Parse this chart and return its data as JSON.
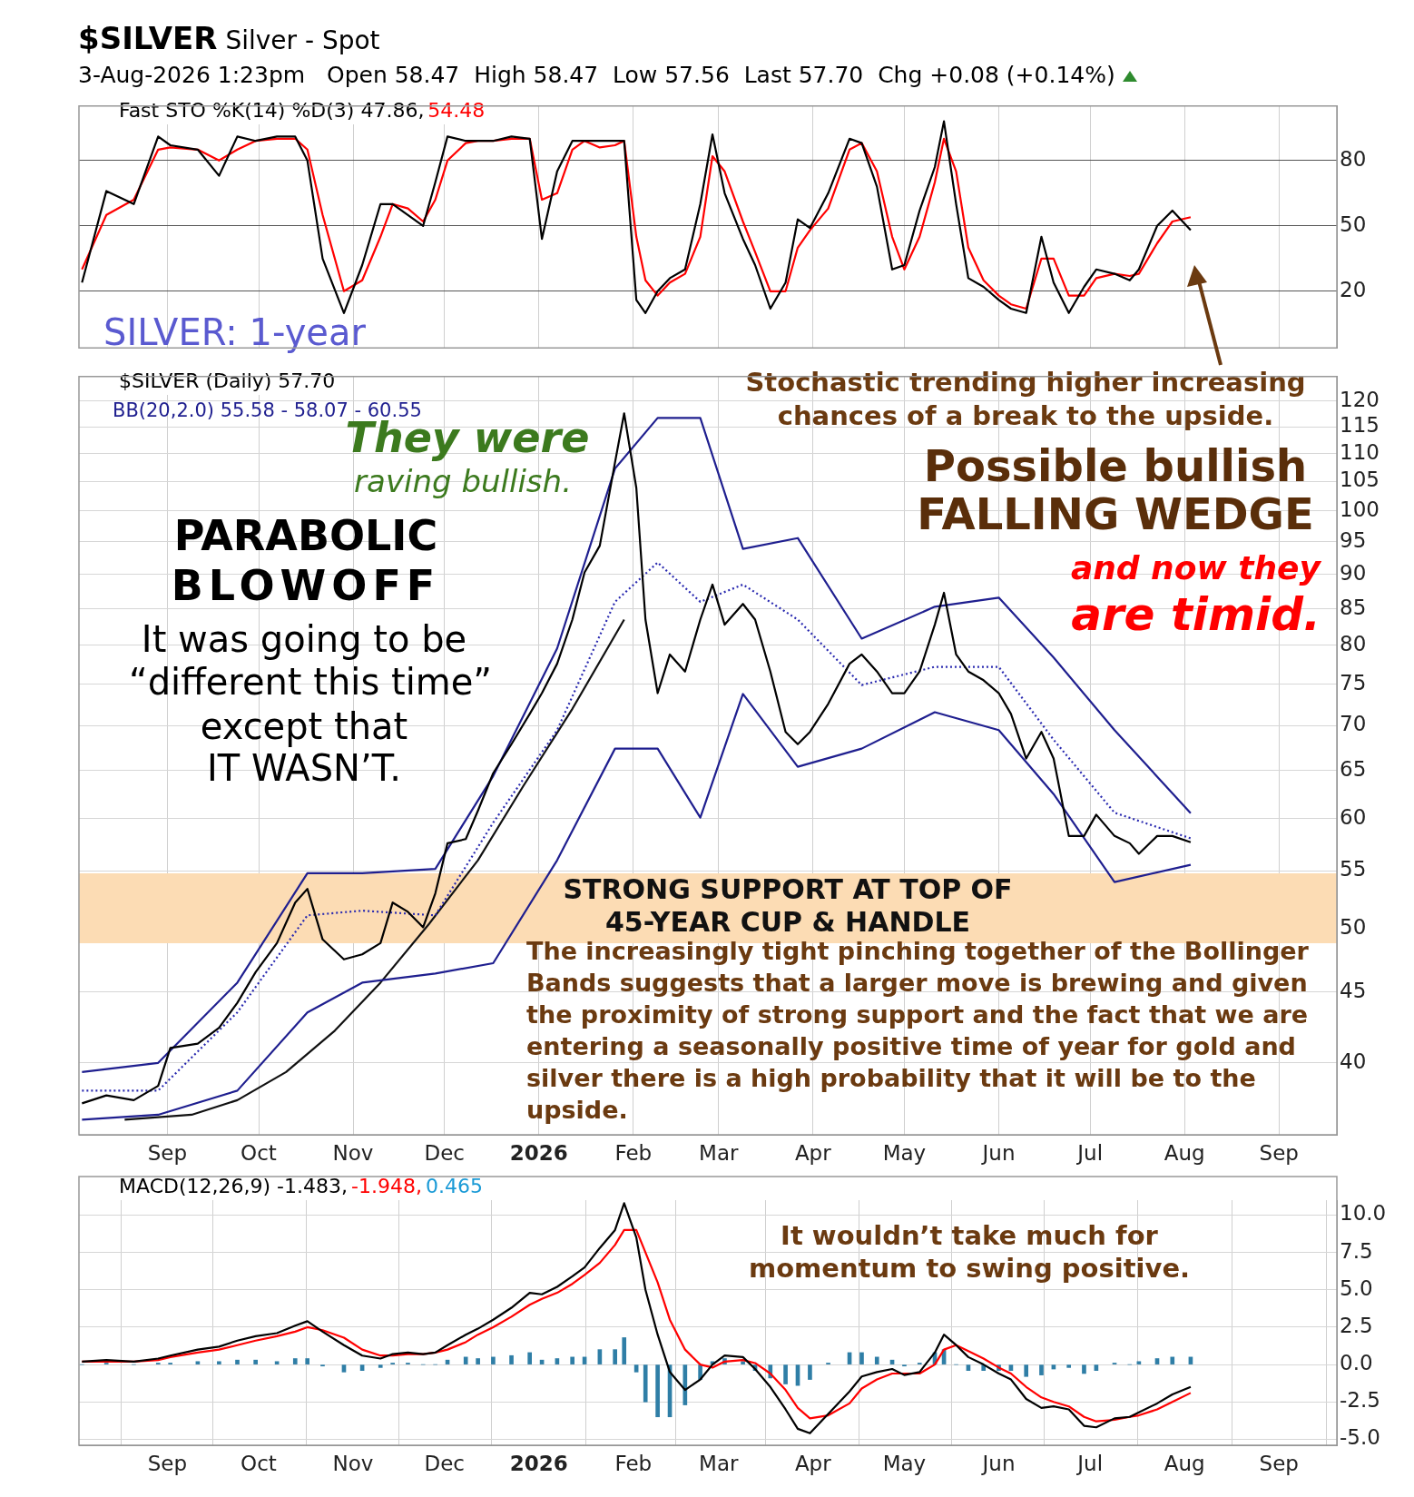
{
  "chart_data": [
    {
      "type": "line",
      "title": "$SILVER Silver - Spot",
      "subtitle": "3-Aug-2026 1:23pm   Open 58.47  High 58.47  Low 57.56  Last 57.70  Chg +0.08 (+0.14%)",
      "x": [
        "2025-08-04",
        "2025-08-12",
        "2025-08-21",
        "2025-08-29",
        "2025-09-02",
        "2025-09-11",
        "2025-09-18",
        "2025-09-24",
        "2025-09-30",
        "2025-10-07",
        "2025-10-13",
        "2025-10-17",
        "2025-10-22",
        "2025-10-29",
        "2025-11-04",
        "2025-11-10",
        "2025-11-14",
        "2025-11-19",
        "2025-11-24",
        "2025-11-28",
        "2025-12-02",
        "2025-12-08",
        "2025-12-12",
        "2025-12-17",
        "2025-12-23",
        "2025-12-29",
        "2026-01-02",
        "2026-01-07",
        "2026-01-12",
        "2026-01-16",
        "2026-01-21",
        "2026-01-26",
        "2026-01-29",
        "2026-02-02",
        "2026-02-05",
        "2026-02-09",
        "2026-02-13",
        "2026-02-18",
        "2026-02-23",
        "2026-02-27",
        "2026-03-03",
        "2026-03-09",
        "2026-03-13",
        "2026-03-18",
        "2026-03-23",
        "2026-03-27",
        "2026-03-31",
        "2026-04-06",
        "2026-04-13",
        "2026-04-17",
        "2026-04-22",
        "2026-04-27",
        "2026-05-01",
        "2026-05-06",
        "2026-05-11",
        "2026-05-14",
        "2026-05-18",
        "2026-05-22",
        "2026-05-27",
        "2026-06-01",
        "2026-06-05",
        "2026-06-10",
        "2026-06-15",
        "2026-06-19",
        "2026-06-24",
        "2026-06-29",
        "2026-07-03",
        "2026-07-09",
        "2026-07-14",
        "2026-07-17",
        "2026-07-23",
        "2026-07-28",
        "2026-08-03"
      ],
      "xlim": [
        "2025-08-03",
        "2026-09-20"
      ],
      "xticks": [
        {
          "value": "2025-09-01",
          "label": null
        },
        {
          "value": "2025-10-01",
          "label": null
        },
        {
          "value": "2025-11-01",
          "label": null
        },
        {
          "value": "2025-12-01",
          "label": null
        },
        {
          "value": "2026-01-01",
          "label": null
        },
        {
          "value": "2026-02-01",
          "label": null
        },
        {
          "value": "2026-03-01",
          "label": null
        },
        {
          "value": "2026-04-01",
          "label": null
        },
        {
          "value": "2026-05-01",
          "label": null
        },
        {
          "value": "2026-06-01",
          "label": null
        },
        {
          "value": "2026-07-01",
          "label": null
        },
        {
          "value": "2026-08-01",
          "label": null
        },
        {
          "value": "2026-09-01",
          "label": null
        }
      ],
      "ylim": [
        -6,
        105
      ],
      "yticks": [
        20,
        50,
        80
      ],
      "grid": true,
      "tick_labels": "y",
      "series": [
        {
          "color": "#000000",
          "values": [
            24,
            66,
            60,
            91,
            87,
            85,
            73,
            91,
            89,
            91,
            91,
            80,
            35,
            10,
            32,
            60,
            60,
            55,
            50,
            70,
            91,
            89,
            89,
            89,
            91,
            90,
            44,
            75,
            89,
            89,
            89,
            89,
            89,
            16,
            10,
            20,
            26,
            30,
            60,
            92,
            65,
            44,
            32,
            12,
            24,
            53,
            49,
            65,
            90,
            88,
            68,
            30,
            32,
            57,
            77,
            98,
            60,
            26,
            22,
            16,
            12,
            10,
            45,
            24,
            10,
            22,
            30,
            28,
            25,
            30,
            50,
            57,
            48
          ]
        },
        {
          "color": "#ff0000",
          "values": [
            30,
            55,
            62,
            85,
            86,
            85,
            80,
            85,
            89,
            90,
            90,
            85,
            55,
            20,
            25,
            45,
            60,
            58,
            52,
            62,
            80,
            88,
            89,
            89,
            90,
            90,
            62,
            65,
            85,
            89,
            86,
            87,
            89,
            45,
            25,
            18,
            24,
            28,
            45,
            82,
            75,
            52,
            38,
            20,
            20,
            40,
            48,
            58,
            85,
            88,
            75,
            45,
            30,
            45,
            70,
            90,
            75,
            40,
            25,
            18,
            14,
            12,
            35,
            35,
            18,
            18,
            26,
            28,
            27,
            28,
            42,
            52,
            54
          ]
        }
      ],
      "annotations": [
        "Fast STO %K(14) %D(3) 47.86,",
        "54.48",
        "SILVER: 1-year"
      ]
    },
    {
      "type": "line",
      "log": "y",
      "x": [
        "2025-08-04",
        "2025-08-12",
        "2025-08-21",
        "2025-08-29",
        "2025-09-02",
        "2025-09-11",
        "2025-09-18",
        "2025-09-24",
        "2025-09-30",
        "2025-10-07",
        "2025-10-13",
        "2025-10-17",
        "2025-10-22",
        "2025-10-29",
        "2025-11-04",
        "2025-11-10",
        "2025-11-14",
        "2025-11-19",
        "2025-11-24",
        "2025-11-28",
        "2025-12-02",
        "2025-12-08",
        "2025-12-12",
        "2025-12-17",
        "2025-12-23",
        "2025-12-29",
        "2026-01-02",
        "2026-01-07",
        "2026-01-12",
        "2026-01-16",
        "2026-01-21",
        "2026-01-26",
        "2026-01-29",
        "2026-02-02",
        "2026-02-05",
        "2026-02-09",
        "2026-02-13",
        "2026-02-18",
        "2026-02-23",
        "2026-02-27",
        "2026-03-03",
        "2026-03-09",
        "2026-03-13",
        "2026-03-18",
        "2026-03-23",
        "2026-03-27",
        "2026-03-31",
        "2026-04-06",
        "2026-04-13",
        "2026-04-17",
        "2026-04-22",
        "2026-04-27",
        "2026-05-01",
        "2026-05-06",
        "2026-05-11",
        "2026-05-14",
        "2026-05-18",
        "2026-05-22",
        "2026-05-27",
        "2026-06-01",
        "2026-06-05",
        "2026-06-10",
        "2026-06-15",
        "2026-06-19",
        "2026-06-24",
        "2026-06-29",
        "2026-07-03",
        "2026-07-09",
        "2026-07-14",
        "2026-07-17",
        "2026-07-23",
        "2026-07-28",
        "2026-08-03"
      ],
      "xlim": [
        "2025-08-03",
        "2026-09-20"
      ],
      "xticks": [
        {
          "value": "2025-09-01",
          "label": "Sep"
        },
        {
          "value": "2025-10-01",
          "label": "Oct"
        },
        {
          "value": "2025-11-01",
          "label": "Nov"
        },
        {
          "value": "2025-12-01",
          "label": "Dec"
        },
        {
          "value": "2026-01-01",
          "label": "2026"
        },
        {
          "value": "2026-02-01",
          "label": "Feb"
        },
        {
          "value": "2026-03-01",
          "label": "Mar"
        },
        {
          "value": "2026-04-01",
          "label": "Apr"
        },
        {
          "value": "2026-05-01",
          "label": "May"
        },
        {
          "value": "2026-06-01",
          "label": "Jun"
        },
        {
          "value": "2026-07-01",
          "label": "Jul"
        },
        {
          "value": "2026-08-01",
          "label": "Aug"
        },
        {
          "value": "2026-09-01",
          "label": "Sep"
        }
      ],
      "ylim": [
        35.5,
        125
      ],
      "yticks": [
        40,
        45,
        50,
        55,
        60,
        65,
        70,
        75,
        80,
        85,
        90,
        95,
        100,
        105,
        110,
        115,
        120
      ],
      "grid": true,
      "bands": [
        {
          "axis": "y",
          "from": 48.8,
          "to": 54.8,
          "label": "STRONG SUPPORT AT TOP OF 45-YEAR CUP & HANDLE",
          "color": "#fcdcb4"
        }
      ],
      "series": [
        {
          "color": "#000000",
          "values": [
            37.4,
            37.9,
            37.6,
            38.5,
            41.0,
            41.3,
            42.4,
            44.2,
            46.5,
            48.8,
            52.2,
            53.4,
            49.1,
            47.5,
            47.9,
            48.8,
            52.2,
            51.4,
            50.1,
            53.0,
            57.6,
            58.0,
            60.8,
            64.7,
            67.9,
            71.4,
            73.9,
            77.6,
            83.5,
            90.3,
            94.4,
            108.4,
            117.6,
            103.9,
            83.5,
            73.9,
            78.8,
            76.6,
            83.5,
            88.5,
            82.8,
            85.7,
            83.5,
            76.6,
            69.3,
            67.9,
            69.3,
            72.6,
            77.6,
            78.8,
            76.6,
            73.9,
            73.9,
            76.6,
            82.8,
            87.3,
            78.8,
            76.6,
            75.5,
            73.9,
            71.4,
            66.3,
            69.3,
            66.3,
            58.3,
            58.3,
            60.4,
            58.3,
            57.6,
            56.6,
            58.3,
            58.3,
            57.7
          ]
        },
        {
          "color": "#1f1f8f",
          "x": [
            "2025-08-04",
            "2025-08-29",
            "2025-09-24",
            "2025-10-17",
            "2025-11-04",
            "2025-11-28",
            "2025-12-17",
            "2026-01-07",
            "2026-01-26",
            "2026-02-09",
            "2026-02-23",
            "2026-03-09",
            "2026-03-27",
            "2026-04-17",
            "2026-05-11",
            "2026-06-01",
            "2026-06-19",
            "2026-07-09",
            "2026-08-03"
          ],
          "values": [
            39.4,
            40.0,
            45.7,
            54.8,
            54.8,
            55.2,
            64.4,
            79.6,
            107.3,
            116.7,
            116.7,
            93.9,
            95.6,
            80.9,
            85.3,
            86.6,
            78.4,
            69.5,
            60.55
          ]
        },
        {
          "color": "#2a2ab0",
          "line_style": "dotted",
          "x": [
            "2025-08-04",
            "2025-08-29",
            "2025-09-24",
            "2025-10-17",
            "2025-11-04",
            "2025-11-28",
            "2025-12-17",
            "2026-01-07",
            "2026-01-26",
            "2026-02-09",
            "2026-02-23",
            "2026-03-09",
            "2026-03-27",
            "2026-04-17",
            "2026-05-11",
            "2026-06-01",
            "2026-06-19",
            "2026-07-09",
            "2026-08-03"
          ],
          "values": [
            38.2,
            38.2,
            43.5,
            51.1,
            51.5,
            51.1,
            59.6,
            69.5,
            86.0,
            91.8,
            86.0,
            88.5,
            83.5,
            74.9,
            77.2,
            77.2,
            68.4,
            60.6,
            58.07
          ]
        },
        {
          "color": "#1f1f8f",
          "x": [
            "2025-08-04",
            "2025-08-29",
            "2025-09-24",
            "2025-10-17",
            "2025-11-04",
            "2025-11-28",
            "2025-12-17",
            "2026-01-07",
            "2026-01-26",
            "2026-02-09",
            "2026-02-23",
            "2026-03-09",
            "2026-03-27",
            "2026-04-17",
            "2026-05-11",
            "2026-06-01",
            "2026-06-19",
            "2026-07-09",
            "2026-08-03"
          ],
          "values": [
            36.4,
            36.7,
            38.2,
            43.5,
            45.7,
            46.4,
            47.2,
            56.0,
            67.4,
            67.4,
            60.1,
            73.8,
            65.4,
            67.4,
            71.6,
            69.5,
            62.5,
            54.0,
            55.58
          ]
        },
        {
          "color": "#111111",
          "x": [
            "2025-08-18",
            "2025-09-09",
            "2025-09-24",
            "2025-10-10",
            "2025-10-26",
            "2025-11-10",
            "2025-11-26",
            "2025-12-12",
            "2025-12-27",
            "2026-01-12",
            "2026-01-29"
          ],
          "values": [
            36.4,
            36.7,
            37.6,
            39.4,
            42.2,
            45.7,
            50.4,
            56.0,
            63.4,
            72.0,
            83.5
          ]
        }
      ],
      "annotations": [
        "$SILVER (Daily) 57.70",
        "BB(20,2.0) 55.58 - 58.07 - 60.55",
        "They were",
        "raving bullish.",
        "PARABOLIC",
        "BLOWOFF",
        "It was going to be",
        "“different this time”",
        "except that",
        "IT WASN’T.",
        "Stochastic trending higher increasing",
        "chances of a break to the upside.",
        "Possible bullish",
        "FALLING WEDGE",
        "and now they",
        "are timid.",
        "The increasingly tight pinching together of the Bollinger Bands suggests that a larger move is brewing and given the proximity of strong support and the fact that we are entering a seasonally positive time of year for gold and silver there is a high probability that it will be to the upside."
      ]
    },
    {
      "type": "line",
      "x": [
        "2025-08-04",
        "2025-08-12",
        "2025-08-21",
        "2025-08-29",
        "2025-09-02",
        "2025-09-11",
        "2025-09-18",
        "2025-09-24",
        "2025-09-30",
        "2025-10-07",
        "2025-10-13",
        "2025-10-17",
        "2025-10-22",
        "2025-10-29",
        "2025-11-04",
        "2025-11-10",
        "2025-11-14",
        "2025-11-19",
        "2025-11-24",
        "2025-11-28",
        "2025-12-02",
        "2025-12-08",
        "2025-12-12",
        "2025-12-17",
        "2025-12-23",
        "2025-12-29",
        "2026-01-02",
        "2026-01-07",
        "2026-01-12",
        "2026-01-16",
        "2026-01-21",
        "2026-01-26",
        "2026-01-29",
        "2026-02-02",
        "2026-02-05",
        "2026-02-09",
        "2026-02-13",
        "2026-02-18",
        "2026-02-23",
        "2026-02-27",
        "2026-03-03",
        "2026-03-09",
        "2026-03-13",
        "2026-03-18",
        "2026-03-23",
        "2026-03-27",
        "2026-03-31",
        "2026-04-06",
        "2026-04-13",
        "2026-04-17",
        "2026-04-22",
        "2026-04-27",
        "2026-05-01",
        "2026-05-06",
        "2026-05-11",
        "2026-05-14",
        "2026-05-18",
        "2026-05-22",
        "2026-05-27",
        "2026-06-01",
        "2026-06-05",
        "2026-06-10",
        "2026-06-15",
        "2026-06-19",
        "2026-06-24",
        "2026-06-29",
        "2026-07-03",
        "2026-07-09",
        "2026-07-14",
        "2026-07-17",
        "2026-07-23",
        "2026-07-28",
        "2026-08-03"
      ],
      "xlim": [
        "2025-08-03",
        "2026-09-20"
      ],
      "xticks": [
        {
          "value": "2025-09-01",
          "label": "Sep"
        },
        {
          "value": "2025-10-01",
          "label": "Oct"
        },
        {
          "value": "2025-11-01",
          "label": "Nov"
        },
        {
          "value": "2025-12-01",
          "label": "Dec"
        },
        {
          "value": "2026-01-01",
          "label": "2026"
        },
        {
          "value": "2026-02-01",
          "label": "Feb"
        },
        {
          "value": "2026-03-01",
          "label": "Mar"
        },
        {
          "value": "2026-04-01",
          "label": "Apr"
        },
        {
          "value": "2026-05-01",
          "label": "May"
        },
        {
          "value": "2026-06-01",
          "label": "Jun"
        },
        {
          "value": "2026-07-01",
          "label": "Jul"
        },
        {
          "value": "2026-08-01",
          "label": "Aug"
        },
        {
          "value": "2026-09-01",
          "label": "Sep"
        }
      ],
      "ylim": [
        -5.4,
        11.0
      ],
      "yticks": [
        {
          "value": -5,
          "label": "-5.0"
        },
        {
          "value": -2.5,
          "label": "-2.5"
        },
        {
          "value": 0,
          "label": "0.0"
        },
        {
          "value": 2.5,
          "label": "2.5"
        },
        {
          "value": 5,
          "label": "5.0"
        },
        {
          "value": 7.5,
          "label": "7.5"
        },
        {
          "value": 10,
          "label": "10.0"
        }
      ],
      "grid": true,
      "series": [
        {
          "type": "bar",
          "color": "#2f7ea6",
          "values": [
            0,
            0.1,
            0,
            0.1,
            0.1,
            0.2,
            0.2,
            0.3,
            0.3,
            0.2,
            0.4,
            0.4,
            -0.1,
            -0.5,
            -0.4,
            -0.2,
            0.1,
            0.1,
            0,
            0,
            0.3,
            0.5,
            0.4,
            0.5,
            0.6,
            0.8,
            0.3,
            0.4,
            0.5,
            0.5,
            1.0,
            1.0,
            1.8,
            -0.5,
            -2.5,
            -3.5,
            -3.5,
            -2.7,
            -1.0,
            0.2,
            0.4,
            0.2,
            -0.4,
            -0.9,
            -1.3,
            -1.4,
            -1.0,
            0.1,
            0.8,
            0.8,
            0.5,
            0.3,
            -0.1,
            0.1,
            0.8,
            1.0,
            0,
            -0.4,
            -0.4,
            -0.4,
            -0.4,
            -0.8,
            -0.7,
            -0.3,
            -0.2,
            -0.6,
            -0.4,
            0.1,
            0,
            0.2,
            0.4,
            0.5,
            0.5
          ]
        },
        {
          "color": "#000000",
          "values": [
            0.2,
            0.3,
            0.2,
            0.4,
            0.6,
            1.0,
            1.2,
            1.6,
            1.9,
            2.1,
            2.6,
            2.9,
            2.2,
            1.3,
            0.6,
            0.4,
            0.7,
            0.8,
            0.7,
            0.8,
            1.3,
            2.0,
            2.4,
            3.0,
            3.8,
            4.8,
            4.7,
            5.2,
            5.9,
            6.5,
            7.8,
            9.0,
            10.8,
            8.5,
            5.0,
            2.0,
            -0.5,
            -1.7,
            -1.0,
            0.0,
            0.6,
            0.5,
            -0.3,
            -1.5,
            -3.0,
            -4.3,
            -4.6,
            -3.3,
            -1.8,
            -0.8,
            -0.5,
            -0.3,
            -0.7,
            -0.5,
            0.8,
            2.0,
            1.3,
            0.5,
            0.0,
            -0.6,
            -1.0,
            -2.3,
            -2.9,
            -2.8,
            -3.0,
            -4.1,
            -4.2,
            -3.6,
            -3.5,
            -3.2,
            -2.6,
            -2.0,
            -1.5
          ]
        },
        {
          "color": "#ff0000",
          "values": [
            0.2,
            0.2,
            0.2,
            0.3,
            0.5,
            0.8,
            1.0,
            1.3,
            1.6,
            1.9,
            2.2,
            2.5,
            2.3,
            1.8,
            1.0,
            0.6,
            0.6,
            0.7,
            0.7,
            0.8,
            1.0,
            1.5,
            2.0,
            2.5,
            3.2,
            4.0,
            4.4,
            4.8,
            5.4,
            6.0,
            6.8,
            8.0,
            9.0,
            9.0,
            7.5,
            5.5,
            3.0,
            1.0,
            0.0,
            -0.2,
            0.2,
            0.3,
            0.1,
            -0.6,
            -1.7,
            -2.9,
            -3.6,
            -3.4,
            -2.6,
            -1.6,
            -1.0,
            -0.6,
            -0.6,
            -0.6,
            0.0,
            1.0,
            1.3,
            0.9,
            0.4,
            -0.2,
            -0.6,
            -1.5,
            -2.2,
            -2.5,
            -2.8,
            -3.5,
            -3.8,
            -3.7,
            -3.5,
            -3.4,
            -3.0,
            -2.5,
            -1.9
          ]
        }
      ],
      "annotations": [
        "MACD(12,26,9) -1.483,",
        "-1.948,",
        "0.465",
        "It wouldn’t take much for",
        "momentum to swing positive."
      ]
    }
  ]
}
